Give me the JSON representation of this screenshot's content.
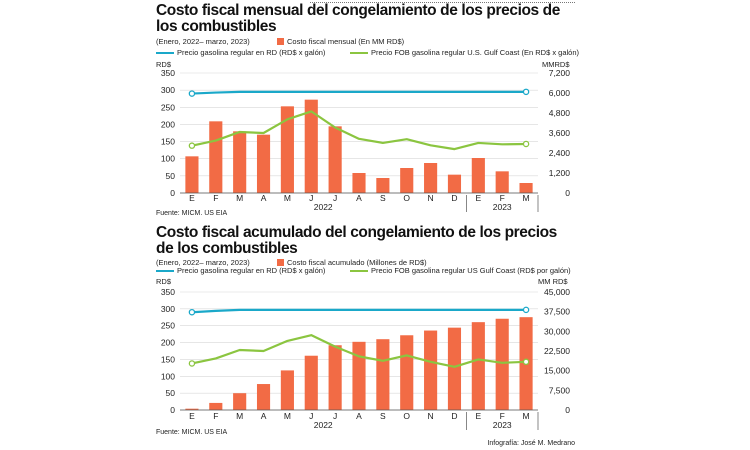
{
  "chart_data": [
    {
      "type": "bar",
      "title": "Costo fiscal mensual del congelamiento de los precios de los combustibles",
      "subtitle": "(Enero, 2022– marzo, 2023)",
      "categories": [
        "E",
        "F",
        "M",
        "A",
        "M",
        "J",
        "J",
        "A",
        "S",
        "O",
        "N",
        "D",
        "E",
        "F",
        "M"
      ],
      "year_labels": [
        "2022",
        "2023"
      ],
      "ylabel_left": "RD$",
      "ylabel_right": "MMRD$",
      "ylim_left": [
        0,
        350
      ],
      "yticks_left": [
        "0",
        "50",
        "100",
        "150",
        "200",
        "250",
        "300",
        "350"
      ],
      "ylim_right": [
        0,
        7200
      ],
      "yticks_right": [
        "0",
        "1,200",
        "2,400",
        "3,600",
        "4,800",
        "6,000",
        "7,200"
      ],
      "bar_legend": "Costo fiscal mensual  (En MM RD$)",
      "bar_values": [
        2200,
        4300,
        3700,
        3500,
        5200,
        5600,
        4000,
        1200,
        900,
        1500,
        1800,
        1100,
        2100,
        1300,
        600
      ],
      "line_series": [
        {
          "name": "Precio gasolina regular en RD (RD$ x galón)",
          "color": "#1aa8c9",
          "values": [
            290,
            293,
            295,
            295,
            295,
            295,
            295,
            295,
            295,
            295,
            295,
            295,
            295,
            295,
            295
          ]
        },
        {
          "name": "Precio FOB gasolina regular U.S. Gulf Coast  (En RD$ x galón)",
          "color": "#8bc540",
          "values": [
            138,
            153,
            178,
            175,
            215,
            238,
            191,
            158,
            146,
            157,
            139,
            128,
            146,
            142,
            143
          ]
        }
      ],
      "source": "Fuente: MICM. US EIA",
      "colors": {
        "bar": "#f26b45"
      }
    },
    {
      "type": "bar",
      "title": "Costo fiscal acumulado del congelamiento de los precios de los combustibles",
      "subtitle": "(Enero, 2022– marzo, 2023)",
      "categories": [
        "E",
        "F",
        "M",
        "A",
        "M",
        "J",
        "J",
        "A",
        "S",
        "O",
        "N",
        "D",
        "E",
        "F",
        "M"
      ],
      "year_labels": [
        "2022",
        "2023"
      ],
      "ylabel_left": "RD$",
      "ylabel_right": "MM RD$",
      "ylim_left": [
        0,
        350
      ],
      "yticks_left": [
        "0",
        "50",
        "100",
        "150",
        "200",
        "250",
        "300",
        "350"
      ],
      "ylim_right": [
        0,
        45000
      ],
      "yticks_right": [
        "0",
        "7,500",
        "15,000",
        "22,500",
        "30,000",
        "37,500",
        "45,000"
      ],
      "bar_legend": "Costo fiscal acumulado  (Millones de RD$)",
      "bar_values": [
        500,
        2700,
        6400,
        9900,
        15100,
        20700,
        24700,
        26000,
        27000,
        28500,
        30300,
        31400,
        33500,
        34800,
        35400
      ],
      "line_series": [
        {
          "name": "Precio gasolina regular en RD (RD$ x galón)",
          "color": "#1aa8c9",
          "values": [
            290,
            294,
            297,
            297,
            297,
            297,
            297,
            297,
            297,
            297,
            297,
            297,
            297,
            297,
            297
          ]
        },
        {
          "name": "Precio FOB gasolina regular US Gulf Coast  (RD$ por galón)",
          "color": "#8bc540",
          "values": [
            138,
            153,
            178,
            175,
            205,
            222,
            188,
            159,
            146,
            162,
            143,
            128,
            150,
            140,
            143
          ]
        }
      ],
      "source": "Fuente: MICM. US EIA",
      "credit": "Infografía: José M. Medrano",
      "colors": {
        "bar": "#f26b45"
      }
    }
  ]
}
